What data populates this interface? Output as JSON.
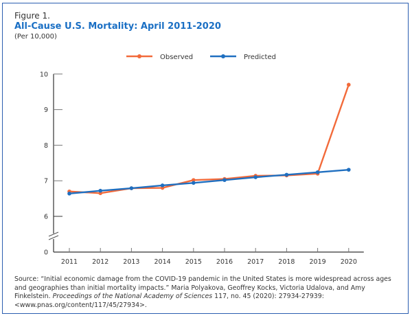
{
  "figure_label": "Figure 1.",
  "title": "All-Cause U.S. Mortality: April 2011-2020",
  "subtitle": "(Per 10,000)",
  "colors": {
    "observed": "#f26a3a",
    "predicted": "#1f6fc0",
    "title": "#1a6fc4",
    "frame": "#2a5db0"
  },
  "chart_data": {
    "type": "line",
    "title": "All-Cause U.S. Mortality: April 2011-2020",
    "subtitle": "(Per 10,000)",
    "xlabel": "",
    "ylabel": "",
    "x": [
      "2011",
      "2012",
      "2013",
      "2014",
      "2015",
      "2016",
      "2017",
      "2018",
      "2019",
      "2020"
    ],
    "yticks": [
      0,
      6,
      7,
      8,
      9,
      10
    ],
    "ylim": [
      0,
      10
    ],
    "y_axis_break": "between 0 and 6",
    "grid": false,
    "legend_position": "top-center",
    "series": [
      {
        "name": "Observed",
        "color": "#f26a3a",
        "values": [
          6.7,
          6.65,
          6.79,
          6.8,
          7.02,
          7.05,
          7.14,
          7.15,
          7.2,
          9.7
        ]
      },
      {
        "name": "Predicted",
        "color": "#1f6fc0",
        "values": [
          6.64,
          6.72,
          6.79,
          6.87,
          6.94,
          7.02,
          7.1,
          7.17,
          7.24,
          7.31
        ]
      }
    ]
  },
  "source": {
    "prefix": "Source: “Initial economic damage from the COVID-19 pandemic in the United States is more widespread across ages and geographies than initial mortality impacts.” Maria Polyakova, Geoffrey Kocks, Victoria Udalova, and Amy Finkelstein. ",
    "journal": "Proceedings of the National Academy of Sciences",
    "suffix": " 117, no. 45 (2020): 27934-27939: <www.pnas.org/content/117/45/27934>."
  }
}
